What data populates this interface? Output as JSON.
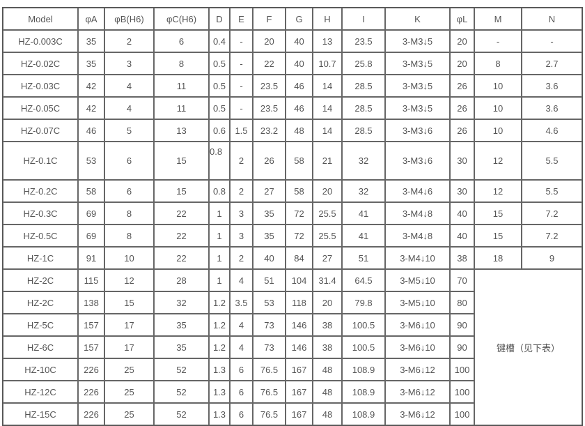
{
  "table": {
    "headers": [
      "Model",
      "φA",
      "φB(H6)",
      "φC(H6)",
      "D",
      "E",
      "F",
      "G",
      "H",
      "I",
      "K",
      "φL",
      "M",
      "N"
    ],
    "rows": [
      [
        "HZ-0.003C",
        "35",
        "2",
        "6",
        "0.4",
        "-",
        "20",
        "40",
        "13",
        "23.5",
        "3-M3↓5",
        "20",
        "-",
        "-"
      ],
      [
        "HZ-0.02C",
        "35",
        "3",
        "8",
        "0.5",
        "-",
        "22",
        "40",
        "10.7",
        "25.8",
        "3-M3↓5",
        "20",
        "8",
        "2.7"
      ],
      [
        "HZ-0.03C",
        "42",
        "4",
        "11",
        "0.5",
        "-",
        "23.5",
        "46",
        "14",
        "28.5",
        "3-M3↓5",
        "26",
        "10",
        "3.6"
      ],
      [
        "HZ-0.05C",
        "42",
        "4",
        "11",
        "0.5",
        "-",
        "23.5",
        "46",
        "14",
        "28.5",
        "3-M3↓5",
        "26",
        "10",
        "3.6"
      ],
      [
        "HZ-0.07C",
        "46",
        "5",
        "13",
        "0.6",
        "1.5",
        "23.2",
        "48",
        "14",
        "28.5",
        "3-M3↓6",
        "26",
        "10",
        "4.6"
      ],
      [
        "HZ-0.1C",
        "53",
        "6",
        "15",
        "0.8",
        "2",
        "26",
        "58",
        "21",
        "32",
        "3-M3↓6",
        "30",
        "12",
        "5.5"
      ],
      [
        "HZ-0.2C",
        "58",
        "6",
        "15",
        "0.8",
        "2",
        "27",
        "58",
        "20",
        "32",
        "3-M4↓6",
        "30",
        "12",
        "5.5"
      ],
      [
        "HZ-0.3C",
        "69",
        "8",
        "22",
        "1",
        "3",
        "35",
        "72",
        "25.5",
        "41",
        "3-M4↓8",
        "40",
        "15",
        "7.2"
      ],
      [
        "HZ-0.5C",
        "69",
        "8",
        "22",
        "1",
        "3",
        "35",
        "72",
        "25.5",
        "41",
        "3-M4↓8",
        "40",
        "15",
        "7.2"
      ],
      [
        "HZ-1C",
        "91",
        "10",
        "22",
        "1",
        "2",
        "40",
        "84",
        "27",
        "51",
        "3-M4↓10",
        "38",
        "18",
        "9"
      ],
      [
        "HZ-2C",
        "115",
        "12",
        "28",
        "1",
        "4",
        "51",
        "104",
        "31.4",
        "64.5",
        "3-M5↓10",
        "70"
      ],
      [
        "HZ-2C",
        "138",
        "15",
        "32",
        "1.2",
        "3.5",
        "53",
        "118",
        "20",
        "79.8",
        "3-M5↓10",
        "80"
      ],
      [
        "HZ-5C",
        "157",
        "17",
        "35",
        "1.2",
        "4",
        "73",
        "146",
        "38",
        "100.5",
        "3-M6↓10",
        "90"
      ],
      [
        "HZ-6C",
        "157",
        "17",
        "35",
        "1.2",
        "4",
        "73",
        "146",
        "38",
        "100.5",
        "3-M6↓10",
        "90"
      ],
      [
        "HZ-10C",
        "226",
        "25",
        "52",
        "1.3",
        "6",
        "76.5",
        "167",
        "48",
        "108.9",
        "3-M6↓12",
        "100"
      ],
      [
        "HZ-12C",
        "226",
        "25",
        "52",
        "1.3",
        "6",
        "76.5",
        "167",
        "48",
        "108.9",
        "3-M6↓12",
        "100"
      ],
      [
        "HZ-15C",
        "226",
        "25",
        "52",
        "1.3",
        "6",
        "76.5",
        "167",
        "48",
        "108.9",
        "3-M6↓12",
        "100"
      ]
    ],
    "merged_note": "键槽（见下表）"
  }
}
